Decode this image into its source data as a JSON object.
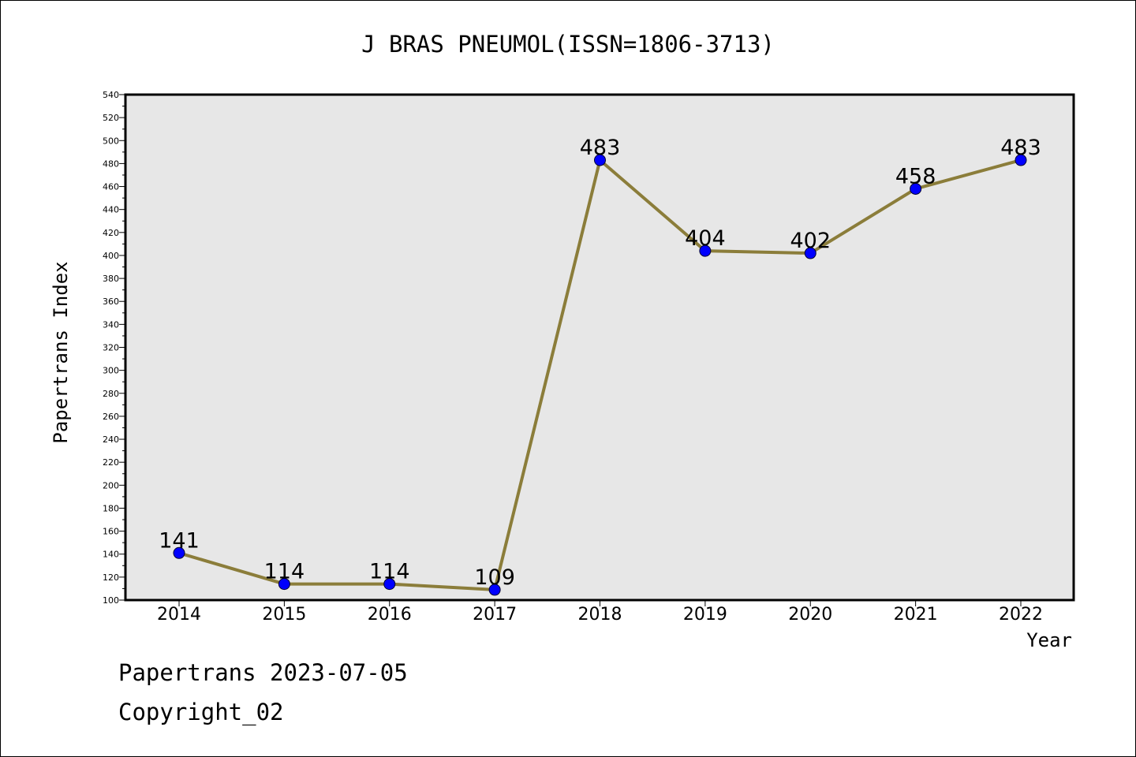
{
  "chart_data": {
    "type": "line",
    "title": "J BRAS PNEUMOL(ISSN=1806-3713)",
    "xlabel": "Year",
    "ylabel": "Papertrans Index",
    "x": [
      "2014",
      "2015",
      "2016",
      "2017",
      "2018",
      "2019",
      "2020",
      "2021",
      "2022"
    ],
    "series": [
      {
        "values": [
          141,
          114,
          114,
          109,
          483,
          404,
          402,
          458,
          483
        ]
      }
    ],
    "data_labels": [
      "141",
      "114",
      "114",
      "109",
      "483",
      "404",
      "402",
      "458",
      "483"
    ],
    "ylim": [
      100,
      540
    ],
    "yticks": [
      100,
      120,
      140,
      160,
      180,
      200,
      220,
      240,
      260,
      280,
      300,
      320,
      340,
      360,
      380,
      400,
      420,
      440,
      460,
      480,
      500,
      520,
      540
    ],
    "grid": false,
    "legend": "none",
    "colors": {
      "line": "#8b7d3a",
      "marker": "#0000ff",
      "plot_background": "#e7e7e7"
    }
  },
  "footer": {
    "line1": "Papertrans 2023-07-05",
    "line2": "Copyright_02"
  }
}
